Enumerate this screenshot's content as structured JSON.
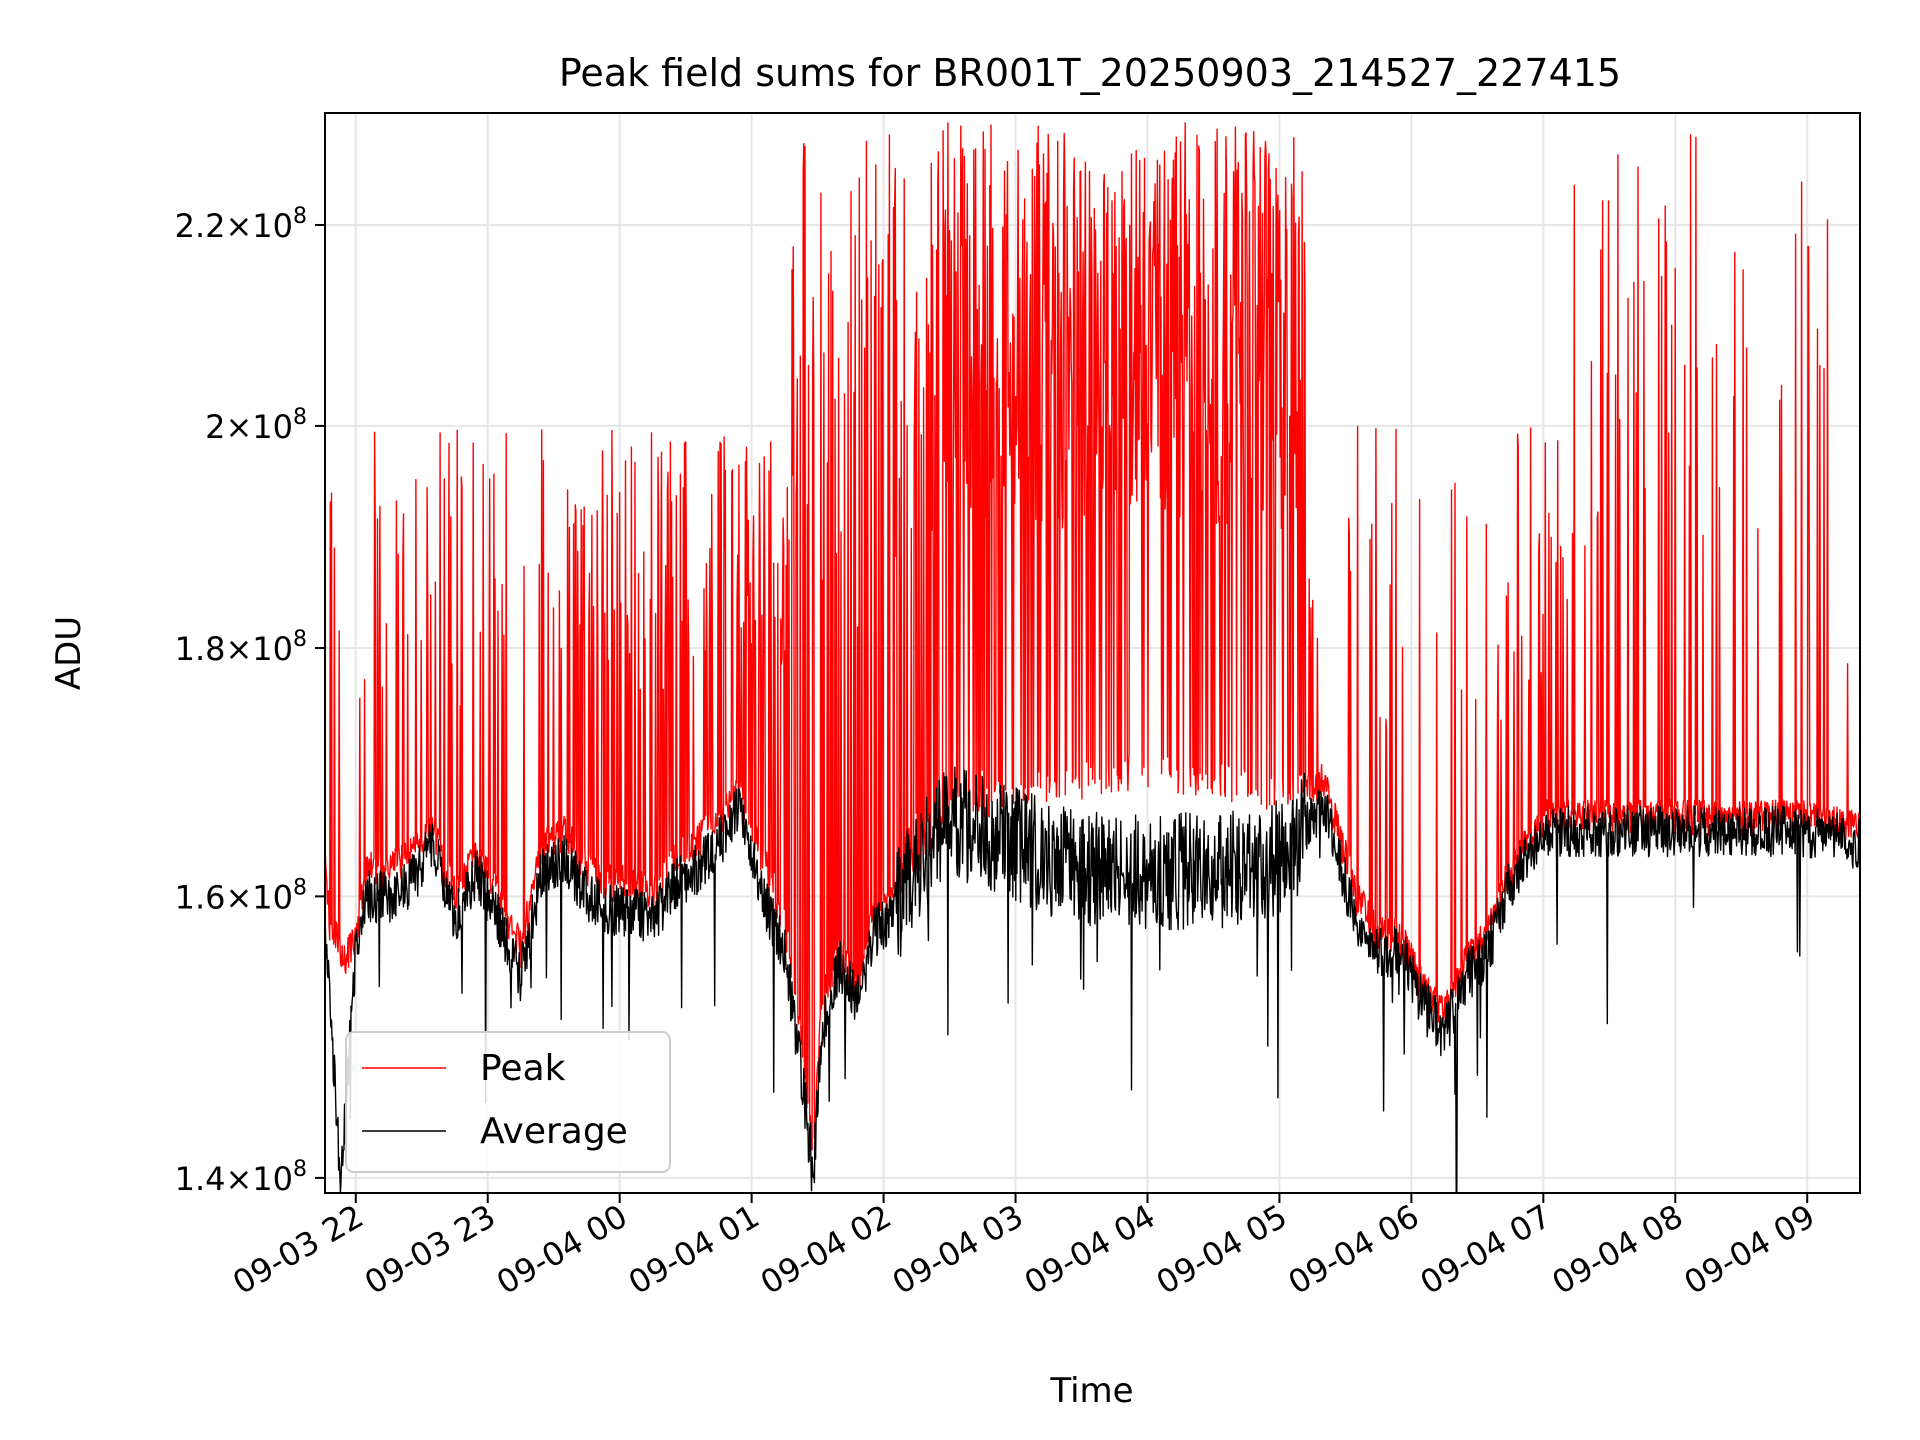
{
  "chart_data": {
    "type": "line",
    "title": "Peak field sums for BR001T_20250903_214527_227415",
    "xlabel": "Time",
    "ylabel": "ADU",
    "y_scale": "log",
    "ylim": [
      139000000,
      232000000
    ],
    "xlim": [
      "2025-09-03 21:46",
      "2025-09-04 09:24"
    ],
    "grid": true,
    "legend_position": "lower-left",
    "x_ticks": [
      {
        "value": "2025-09-03 22:00",
        "label": "09-03 22"
      },
      {
        "value": "2025-09-03 23:00",
        "label": "09-03 23"
      },
      {
        "value": "2025-09-04 00:00",
        "label": "09-04 00"
      },
      {
        "value": "2025-09-04 01:00",
        "label": "09-04 01"
      },
      {
        "value": "2025-09-04 02:00",
        "label": "09-04 02"
      },
      {
        "value": "2025-09-04 03:00",
        "label": "09-04 03"
      },
      {
        "value": "2025-09-04 04:00",
        "label": "09-04 04"
      },
      {
        "value": "2025-09-04 05:00",
        "label": "09-04 05"
      },
      {
        "value": "2025-09-04 06:00",
        "label": "09-04 06"
      },
      {
        "value": "2025-09-04 07:00",
        "label": "09-04 07"
      },
      {
        "value": "2025-09-04 08:00",
        "label": "09-04 08"
      },
      {
        "value": "2025-09-04 09:00",
        "label": "09-04 09"
      }
    ],
    "y_ticks": [
      {
        "value": 140000000,
        "label_mantissa": "1.4",
        "label_exponent": "8"
      },
      {
        "value": 160000000,
        "label_mantissa": "1.6",
        "label_exponent": "8"
      },
      {
        "value": 180000000,
        "label_mantissa": "1.8",
        "label_exponent": "8"
      },
      {
        "value": 200000000,
        "label_mantissa": "2",
        "label_exponent": "8"
      },
      {
        "value": 220000000,
        "label_mantissa": "2.2",
        "label_exponent": "8"
      }
    ],
    "series": [
      {
        "name": "Peak",
        "color": "#ff0000",
        "description_points": [
          [
            "2025-09-03 21:46",
            164000000
          ],
          [
            "2025-09-03 21:48",
            158000000
          ],
          [
            "2025-09-03 21:55",
            155000000
          ],
          [
            "2025-09-03 22:00",
            157000000
          ],
          [
            "2025-09-03 22:05",
            162000000
          ],
          [
            "2025-09-03 22:15",
            162000000
          ],
          [
            "2025-09-03 22:25",
            163000000
          ],
          [
            "2025-09-03 22:35",
            165000000
          ],
          [
            "2025-09-03 22:45",
            160000000
          ],
          [
            "2025-09-03 22:55",
            163000000
          ],
          [
            "2025-09-03 23:05",
            160000000
          ],
          [
            "2025-09-03 23:15",
            156000000
          ],
          [
            "2025-09-03 23:25",
            164000000
          ],
          [
            "2025-09-03 23:35",
            165000000
          ],
          [
            "2025-09-03 23:45",
            162000000
          ],
          [
            "2025-09-03 23:55",
            161000000
          ],
          [
            "2025-09-04 00:05",
            161000000
          ],
          [
            "2025-09-04 00:15",
            160000000
          ],
          [
            "2025-09-04 00:25",
            163000000
          ],
          [
            "2025-09-04 00:35",
            164000000
          ],
          [
            "2025-09-04 00:45",
            166000000
          ],
          [
            "2025-09-04 00:55",
            168000000
          ],
          [
            "2025-09-04 01:05",
            163000000
          ],
          [
            "2025-09-04 01:15",
            158000000
          ],
          [
            "2025-09-04 01:22",
            150000000
          ],
          [
            "2025-09-04 01:28",
            141000000
          ],
          [
            "2025-09-04 01:32",
            152000000
          ],
          [
            "2025-09-04 01:40",
            156000000
          ],
          [
            "2025-09-04 01:48",
            153000000
          ],
          [
            "2025-09-04 01:55",
            158000000
          ],
          [
            "2025-09-04 02:05",
            160000000
          ],
          [
            "2025-09-04 02:15",
            163000000
          ],
          [
            "2025-09-04 02:30",
            167000000
          ],
          [
            "2025-09-04 03:00",
            168000000
          ],
          [
            "2025-09-04 03:30",
            169000000
          ],
          [
            "2025-09-04 04:00",
            170000000
          ],
          [
            "2025-09-04 04:30",
            169000000
          ],
          [
            "2025-09-04 05:00",
            168000000
          ],
          [
            "2025-09-04 05:20",
            169000000
          ],
          [
            "2025-09-04 05:35",
            160000000
          ],
          [
            "2025-09-04 05:45",
            157000000
          ],
          [
            "2025-09-04 05:55",
            157000000
          ],
          [
            "2025-09-04 06:05",
            153000000
          ],
          [
            "2025-09-04 06:15",
            151000000
          ],
          [
            "2025-09-04 06:25",
            155000000
          ],
          [
            "2025-09-04 06:35",
            157000000
          ],
          [
            "2025-09-04 06:45",
            162000000
          ],
          [
            "2025-09-04 07:00",
            166000000
          ],
          [
            "2025-09-04 07:30",
            166000000
          ],
          [
            "2025-09-04 08:00",
            166000000
          ],
          [
            "2025-09-04 08:30",
            166000000
          ],
          [
            "2025-09-04 09:00",
            166000000
          ],
          [
            "2025-09-04 09:24",
            165000000
          ]
        ]
      },
      {
        "name": "Average",
        "color": "#000000",
        "description_points": [
          [
            "2025-09-03 21:46",
            157000000
          ],
          [
            "2025-09-03 21:50",
            148000000
          ],
          [
            "2025-09-03 21:53",
            139000000
          ],
          [
            "2025-09-03 22:00",
            156000000
          ],
          [
            "2025-09-03 22:05",
            160000000
          ],
          [
            "2025-09-03 22:15",
            160000000
          ],
          [
            "2025-09-03 22:25",
            161000000
          ],
          [
            "2025-09-03 22:35",
            164000000
          ],
          [
            "2025-09-03 22:45",
            158000000
          ],
          [
            "2025-09-03 22:55",
            162000000
          ],
          [
            "2025-09-03 23:05",
            158000000
          ],
          [
            "2025-09-03 23:15",
            154000000
          ],
          [
            "2025-09-03 23:25",
            162000000
          ],
          [
            "2025-09-03 23:35",
            163000000
          ],
          [
            "2025-09-03 23:45",
            160000000
          ],
          [
            "2025-09-03 23:55",
            159000000
          ],
          [
            "2025-09-04 00:05",
            159000000
          ],
          [
            "2025-09-04 00:15",
            158000000
          ],
          [
            "2025-09-04 00:25",
            161000000
          ],
          [
            "2025-09-04 00:35",
            162000000
          ],
          [
            "2025-09-04 00:45",
            164000000
          ],
          [
            "2025-09-04 00:55",
            167000000
          ],
          [
            "2025-09-04 01:05",
            160000000
          ],
          [
            "2025-09-04 01:15",
            156000000
          ],
          [
            "2025-09-04 01:22",
            148000000
          ],
          [
            "2025-09-04 01:28",
            140000000
          ],
          [
            "2025-09-04 01:32",
            150000000
          ],
          [
            "2025-09-04 01:40",
            155000000
          ],
          [
            "2025-09-04 01:48",
            152000000
          ],
          [
            "2025-09-04 01:55",
            157000000
          ],
          [
            "2025-09-04 02:05",
            159000000
          ],
          [
            "2025-09-04 02:15",
            162000000
          ],
          [
            "2025-09-04 02:30",
            166000000
          ],
          [
            "2025-09-04 03:00",
            164000000
          ],
          [
            "2025-09-04 03:30",
            162000000
          ],
          [
            "2025-09-04 04:00",
            162000000
          ],
          [
            "2025-09-04 04:30",
            162000000
          ],
          [
            "2025-09-04 05:00",
            163000000
          ],
          [
            "2025-09-04 05:20",
            167000000
          ],
          [
            "2025-09-04 05:35",
            158000000
          ],
          [
            "2025-09-04 05:45",
            156000000
          ],
          [
            "2025-09-04 05:55",
            156000000
          ],
          [
            "2025-09-04 06:05",
            152000000
          ],
          [
            "2025-09-04 06:15",
            150000000
          ],
          [
            "2025-09-04 06:25",
            154000000
          ],
          [
            "2025-09-04 06:35",
            156000000
          ],
          [
            "2025-09-04 06:45",
            161000000
          ],
          [
            "2025-09-04 07:00",
            165000000
          ],
          [
            "2025-09-04 07:30",
            165000000
          ],
          [
            "2025-09-04 08:00",
            165000000
          ],
          [
            "2025-09-04 08:30",
            165000000
          ],
          [
            "2025-09-04 09:00",
            165000000
          ],
          [
            "2025-09-04 09:24",
            164000000
          ]
        ]
      }
    ]
  }
}
